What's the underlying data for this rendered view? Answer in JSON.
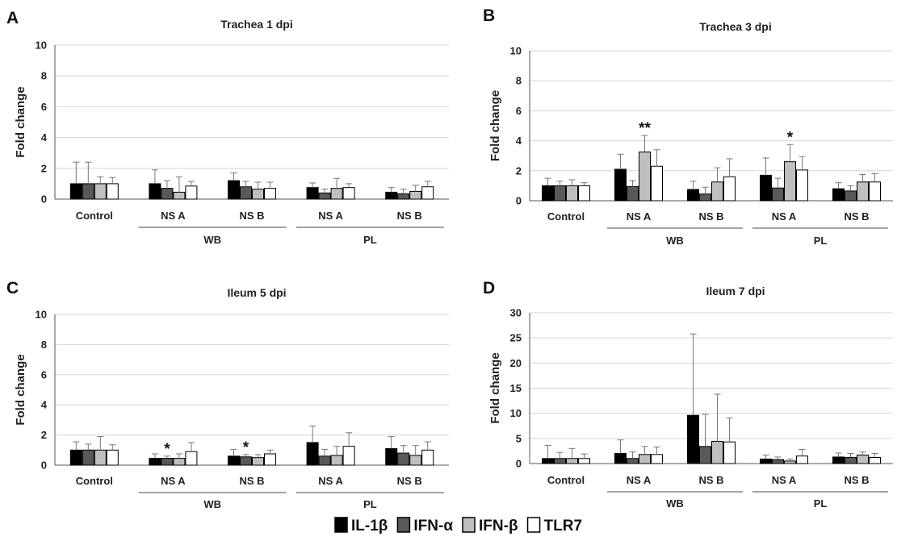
{
  "legend": [
    {
      "name": "IL-1β",
      "color": "#000000"
    },
    {
      "name": "IFN-α",
      "color": "#595959"
    },
    {
      "name": "IFN-β",
      "color": "#bfbfbf"
    },
    {
      "name": "TLR7",
      "color": "#ffffff"
    }
  ],
  "chart_data": [
    {
      "panel": "A",
      "type": "bar",
      "title": "Trachea 1 dpi",
      "ylabel": "Fold change",
      "ylim": [
        0,
        10
      ],
      "yticks": [
        0,
        2,
        4,
        6,
        8,
        10
      ],
      "grid": true,
      "categories": [
        "Control",
        "NS A",
        "NS B",
        "NS A",
        "NS B"
      ],
      "groups": [
        {
          "label": "WB",
          "categories": [
            1,
            2
          ]
        },
        {
          "label": "PL",
          "categories": [
            3,
            4
          ]
        }
      ],
      "series": [
        {
          "name": "IL-1β",
          "values": [
            1.0,
            1.0,
            1.2,
            0.75,
            0.45
          ],
          "errors": [
            1.4,
            0.9,
            0.5,
            0.3,
            0.3
          ]
        },
        {
          "name": "IFN-α",
          "values": [
            1.0,
            0.7,
            0.8,
            0.4,
            0.35
          ],
          "errors": [
            1.4,
            0.5,
            0.35,
            0.25,
            0.3
          ]
        },
        {
          "name": "IFN-β",
          "values": [
            1.0,
            0.45,
            0.65,
            0.7,
            0.5
          ],
          "errors": [
            0.45,
            1.0,
            0.45,
            0.65,
            0.4
          ]
        },
        {
          "name": "TLR7",
          "values": [
            1.0,
            0.85,
            0.7,
            0.75,
            0.8
          ],
          "errors": [
            0.4,
            0.3,
            0.4,
            0.25,
            0.35
          ]
        }
      ],
      "annotations": []
    },
    {
      "panel": "B",
      "type": "bar",
      "title": "Trachea 3 dpi",
      "ylabel": "Fold change",
      "ylim": [
        0,
        10
      ],
      "yticks": [
        0,
        2,
        4,
        6,
        8,
        10
      ],
      "grid": true,
      "categories": [
        "Control",
        "NS A",
        "NS B",
        "NS A",
        "NS B"
      ],
      "groups": [
        {
          "label": "WB",
          "categories": [
            1,
            2
          ]
        },
        {
          "label": "PL",
          "categories": [
            3,
            4
          ]
        }
      ],
      "series": [
        {
          "name": "IL-1β",
          "values": [
            1.0,
            2.1,
            0.75,
            1.7,
            0.8
          ],
          "errors": [
            0.5,
            1.0,
            0.55,
            1.15,
            0.4
          ]
        },
        {
          "name": "IFN-α",
          "values": [
            1.0,
            0.95,
            0.45,
            0.85,
            0.65
          ],
          "errors": [
            0.3,
            0.4,
            0.45,
            0.65,
            0.35
          ]
        },
        {
          "name": "IFN-β",
          "values": [
            1.0,
            3.25,
            1.25,
            2.6,
            1.25
          ],
          "errors": [
            0.4,
            1.1,
            0.95,
            1.15,
            0.5
          ]
        },
        {
          "name": "TLR7",
          "values": [
            1.0,
            2.3,
            1.6,
            2.05,
            1.25
          ],
          "errors": [
            0.2,
            1.1,
            1.2,
            0.9,
            0.55
          ]
        }
      ],
      "annotations": [
        {
          "text": "**",
          "category": 1,
          "series": 2
        },
        {
          "text": "*",
          "category": 3,
          "series": 2
        }
      ]
    },
    {
      "panel": "C",
      "type": "bar",
      "title": "Ileum 5 dpi",
      "ylabel": "Fold change",
      "ylim": [
        0,
        10
      ],
      "yticks": [
        0,
        2,
        4,
        6,
        8,
        10
      ],
      "grid": true,
      "categories": [
        "Control",
        "NS A",
        "NS B",
        "NS A",
        "NS B"
      ],
      "groups": [
        {
          "label": "WB",
          "categories": [
            1,
            2
          ]
        },
        {
          "label": "PL",
          "categories": [
            3,
            4
          ]
        }
      ],
      "series": [
        {
          "name": "IL-1β",
          "values": [
            1.0,
            0.45,
            0.6,
            1.5,
            1.1
          ],
          "errors": [
            0.55,
            0.3,
            0.45,
            1.1,
            0.8
          ]
        },
        {
          "name": "IFN-α",
          "values": [
            1.0,
            0.45,
            0.55,
            0.6,
            0.8
          ],
          "errors": [
            0.4,
            0.15,
            0.15,
            0.45,
            0.5
          ]
        },
        {
          "name": "IFN-β",
          "values": [
            1.0,
            0.45,
            0.5,
            0.65,
            0.65
          ],
          "errors": [
            0.9,
            0.3,
            0.2,
            0.6,
            0.65
          ]
        },
        {
          "name": "TLR7",
          "values": [
            1.0,
            0.9,
            0.75,
            1.25,
            1.0
          ],
          "errors": [
            0.35,
            0.6,
            0.25,
            0.9,
            0.55
          ]
        }
      ],
      "annotations": [
        {
          "text": "*",
          "category": 1,
          "series": 1
        },
        {
          "text": "*",
          "category": 2,
          "series": 1
        }
      ]
    },
    {
      "panel": "D",
      "type": "bar",
      "title": "Ileum 7 dpi",
      "ylabel": "Fold change",
      "ylim": [
        0,
        30
      ],
      "yticks": [
        0,
        5,
        10,
        15,
        20,
        25,
        30
      ],
      "grid": true,
      "categories": [
        "Control",
        "NS A",
        "NS B",
        "NS A",
        "NS B"
      ],
      "groups": [
        {
          "label": "WB",
          "categories": [
            1,
            2
          ]
        },
        {
          "label": "PL",
          "categories": [
            3,
            4
          ]
        }
      ],
      "series": [
        {
          "name": "IL-1β",
          "values": [
            1.0,
            2.0,
            9.6,
            0.9,
            1.3
          ],
          "errors": [
            2.6,
            2.7,
            16.2,
            0.8,
            0.8
          ]
        },
        {
          "name": "IFN-α",
          "values": [
            1.0,
            1.0,
            3.4,
            0.8,
            1.2
          ],
          "errors": [
            1.2,
            1.3,
            6.4,
            0.5,
            0.8
          ]
        },
        {
          "name": "IFN-β",
          "values": [
            1.0,
            1.8,
            4.4,
            0.5,
            1.7
          ],
          "errors": [
            2.0,
            1.6,
            9.4,
            0.4,
            0.6
          ]
        },
        {
          "name": "TLR7",
          "values": [
            1.0,
            1.8,
            4.3,
            1.5,
            1.2
          ],
          "errors": [
            0.9,
            1.5,
            4.8,
            1.3,
            0.8
          ]
        }
      ],
      "annotations": []
    }
  ]
}
